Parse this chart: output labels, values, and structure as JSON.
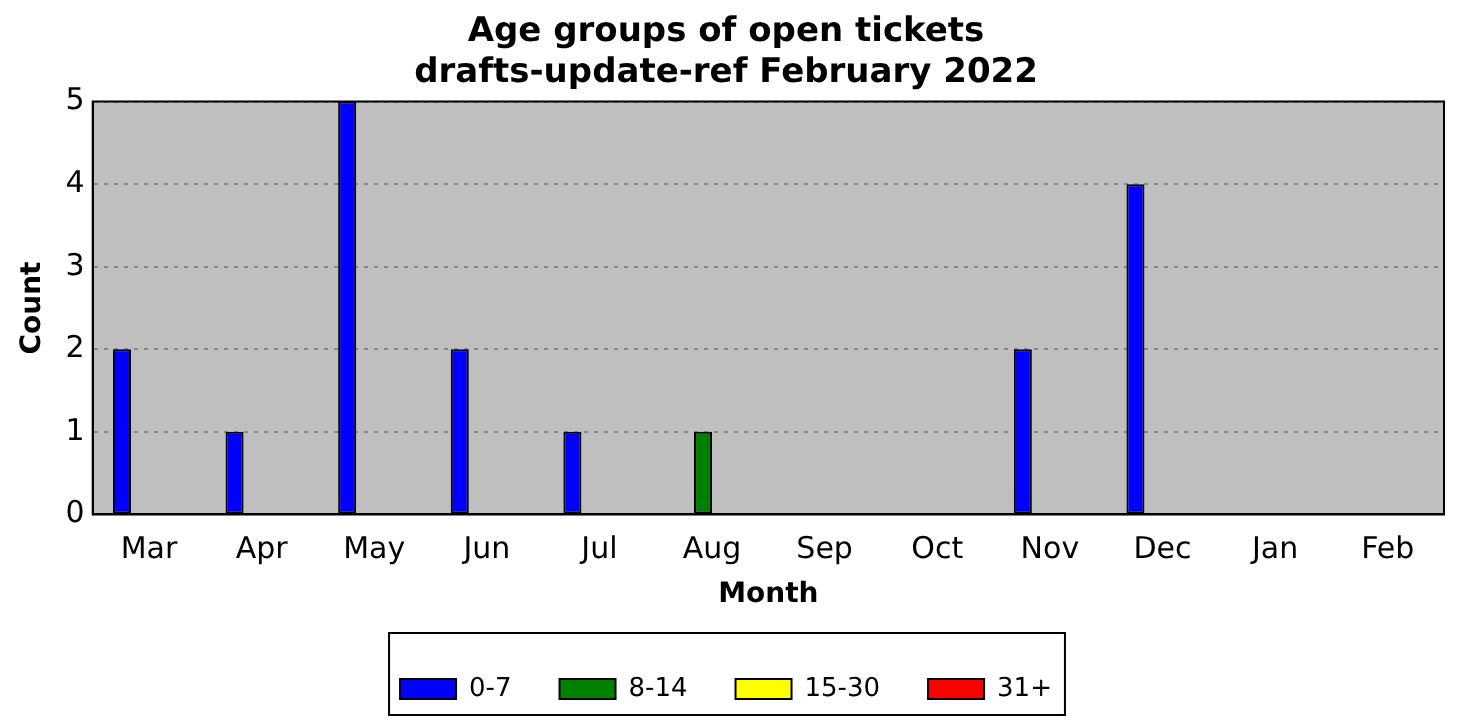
{
  "chart_data": {
    "type": "bar",
    "title": "Age groups of open tickets\ndrafts-update-ref February 2022",
    "xlabel": "Month",
    "ylabel": "Count",
    "categories": [
      "Mar",
      "Apr",
      "May",
      "Jun",
      "Jul",
      "Aug",
      "Sep",
      "Oct",
      "Nov",
      "Dec",
      "Jan",
      "Feb"
    ],
    "series": [
      {
        "name": "0-7",
        "color": "#0000ff",
        "values": [
          2,
          1,
          5,
          2,
          1,
          0,
          0,
          0,
          2,
          4,
          0,
          0
        ]
      },
      {
        "name": "8-14",
        "color": "#008000",
        "values": [
          0,
          0,
          0,
          0,
          0,
          1,
          0,
          0,
          0,
          0,
          0,
          0
        ]
      },
      {
        "name": "15-30",
        "color": "#ffff00",
        "values": [
          0,
          0,
          0,
          0,
          0,
          0,
          0,
          0,
          0,
          0,
          0,
          0
        ]
      },
      {
        "name": "31+",
        "color": "#ff0000",
        "values": [
          0,
          0,
          0,
          0,
          0,
          0,
          0,
          0,
          0,
          0,
          0,
          0
        ]
      }
    ],
    "ylim": [
      0,
      5
    ],
    "yticks": [
      0,
      1,
      2,
      3,
      4,
      5
    ],
    "grid": "y",
    "legend": "bottom"
  }
}
